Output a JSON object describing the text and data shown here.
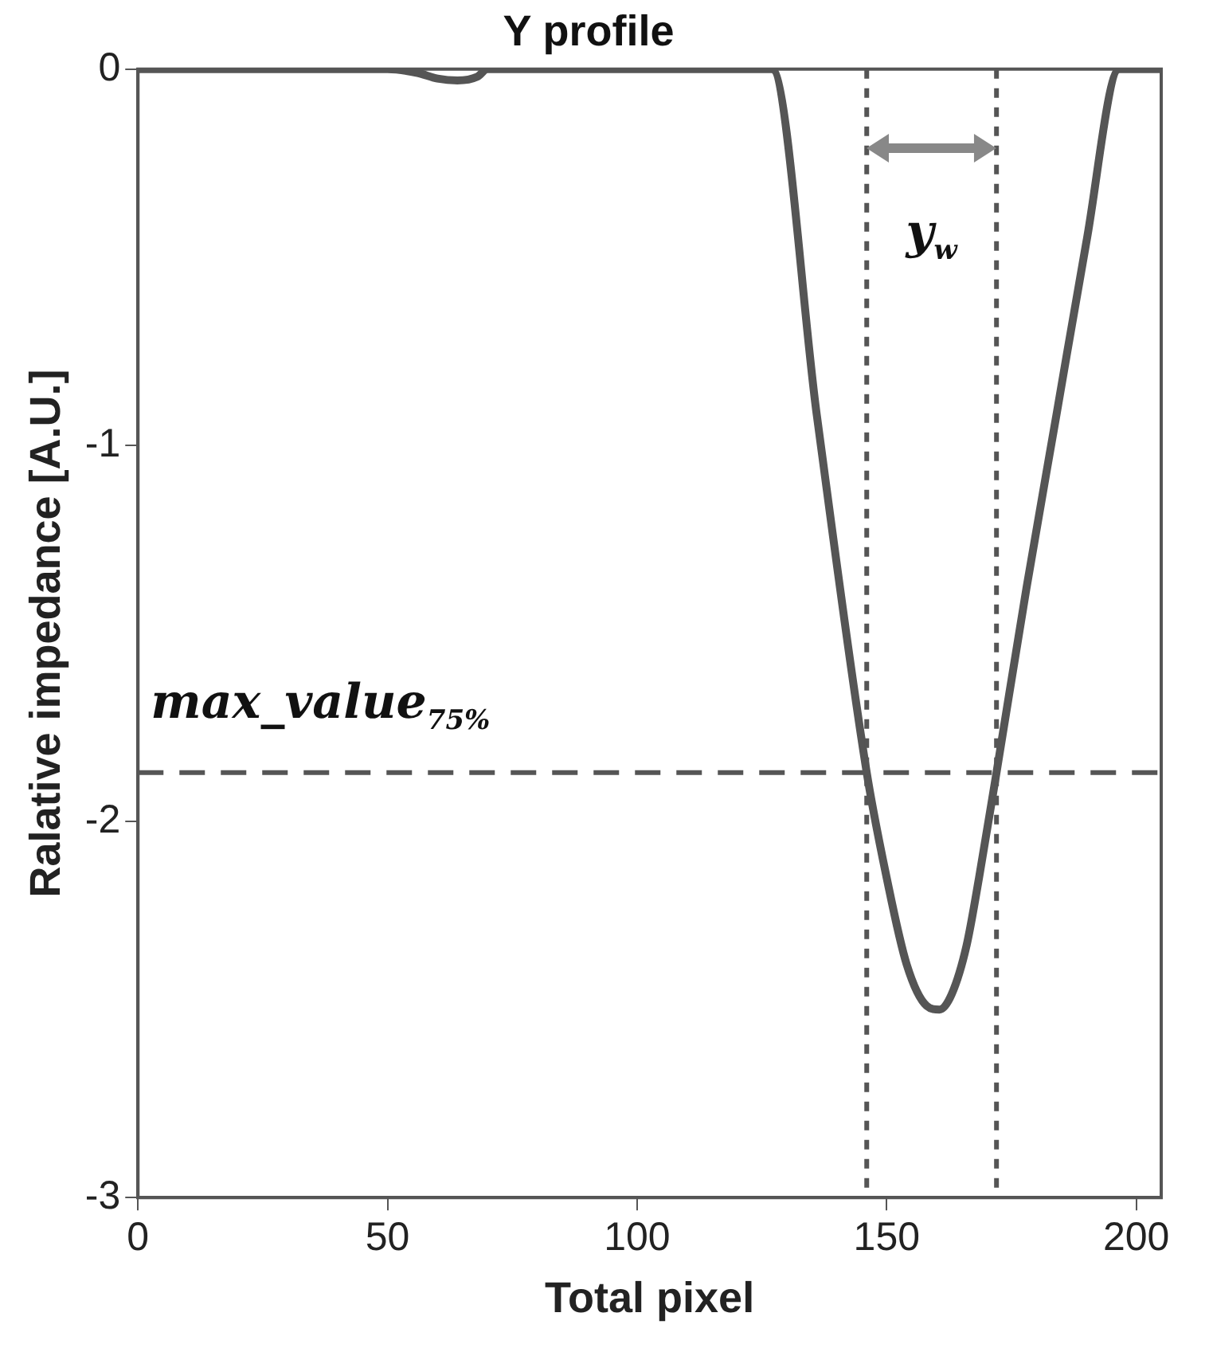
{
  "chart_data": {
    "type": "line",
    "title": "Y profile",
    "xlabel": "Total pixel",
    "ylabel": "Ralative impedance [A.U.]",
    "xlim": [
      0,
      205
    ],
    "xticks": [
      0,
      50,
      100,
      150,
      200
    ],
    "ylim": [
      -3,
      0
    ],
    "yticks": [
      0,
      -1,
      -2,
      -3
    ],
    "series": [
      {
        "color": "#555555",
        "x": [
          0,
          50,
          56,
          60,
          64,
          68,
          70,
          80,
          100,
          120,
          127,
          136,
          146,
          150,
          154,
          158,
          160.6,
          163,
          166,
          168.5,
          172,
          178,
          184,
          190,
          196.6,
          200,
          205
        ],
        "values": [
          0,
          0,
          -0.01,
          -0.025,
          -0.03,
          -0.02,
          0,
          0,
          0,
          0,
          0,
          -0.92,
          -1.87,
          -2.15,
          -2.38,
          -2.49,
          -2.5,
          -2.46,
          -2.33,
          -2.15,
          -1.87,
          -1.38,
          -0.92,
          -0.46,
          0,
          0,
          0
        ]
      }
    ],
    "ref_lines": [
      {
        "axis": "y",
        "value": -1.87,
        "label": "max_value$_{75%}$",
        "line_style": "dashed",
        "color": "#555555"
      },
      {
        "axis": "x",
        "value": 146,
        "line_style": "dotted",
        "color": "#555555"
      },
      {
        "axis": "x",
        "value": 172,
        "line_style": "dotted",
        "color": "#555555"
      }
    ],
    "annotations": [
      "y$_{w}$"
    ],
    "marker": "none",
    "line_style": "solid",
    "legend": false
  }
}
